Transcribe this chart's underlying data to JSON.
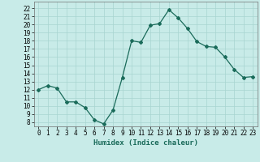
{
  "x": [
    0,
    1,
    2,
    3,
    4,
    5,
    6,
    7,
    8,
    9,
    10,
    11,
    12,
    13,
    14,
    15,
    16,
    17,
    18,
    19,
    20,
    21,
    22,
    23
  ],
  "y": [
    12,
    12.5,
    12.2,
    10.5,
    10.5,
    9.8,
    8.3,
    7.8,
    9.5,
    13.5,
    18,
    17.8,
    19.9,
    20.1,
    21.8,
    20.8,
    19.5,
    17.9,
    17.3,
    17.2,
    16,
    14.5,
    13.5,
    13.6
  ],
  "line_color": "#1a6b5a",
  "marker": "D",
  "marker_size": 2.0,
  "bg_color": "#c8ebe8",
  "grid_color": "#a8d5d0",
  "xlabel": "Humidex (Indice chaleur)",
  "ylabel_ticks": [
    8,
    9,
    10,
    11,
    12,
    13,
    14,
    15,
    16,
    17,
    18,
    19,
    20,
    21,
    22
  ],
  "ylim": [
    7.5,
    22.8
  ],
  "xlim": [
    -0.5,
    23.5
  ],
  "xticks": [
    0,
    1,
    2,
    3,
    4,
    5,
    6,
    7,
    8,
    9,
    10,
    11,
    12,
    13,
    14,
    15,
    16,
    17,
    18,
    19,
    20,
    21,
    22,
    23
  ],
  "label_fontsize": 6.5,
  "tick_fontsize": 5.5
}
